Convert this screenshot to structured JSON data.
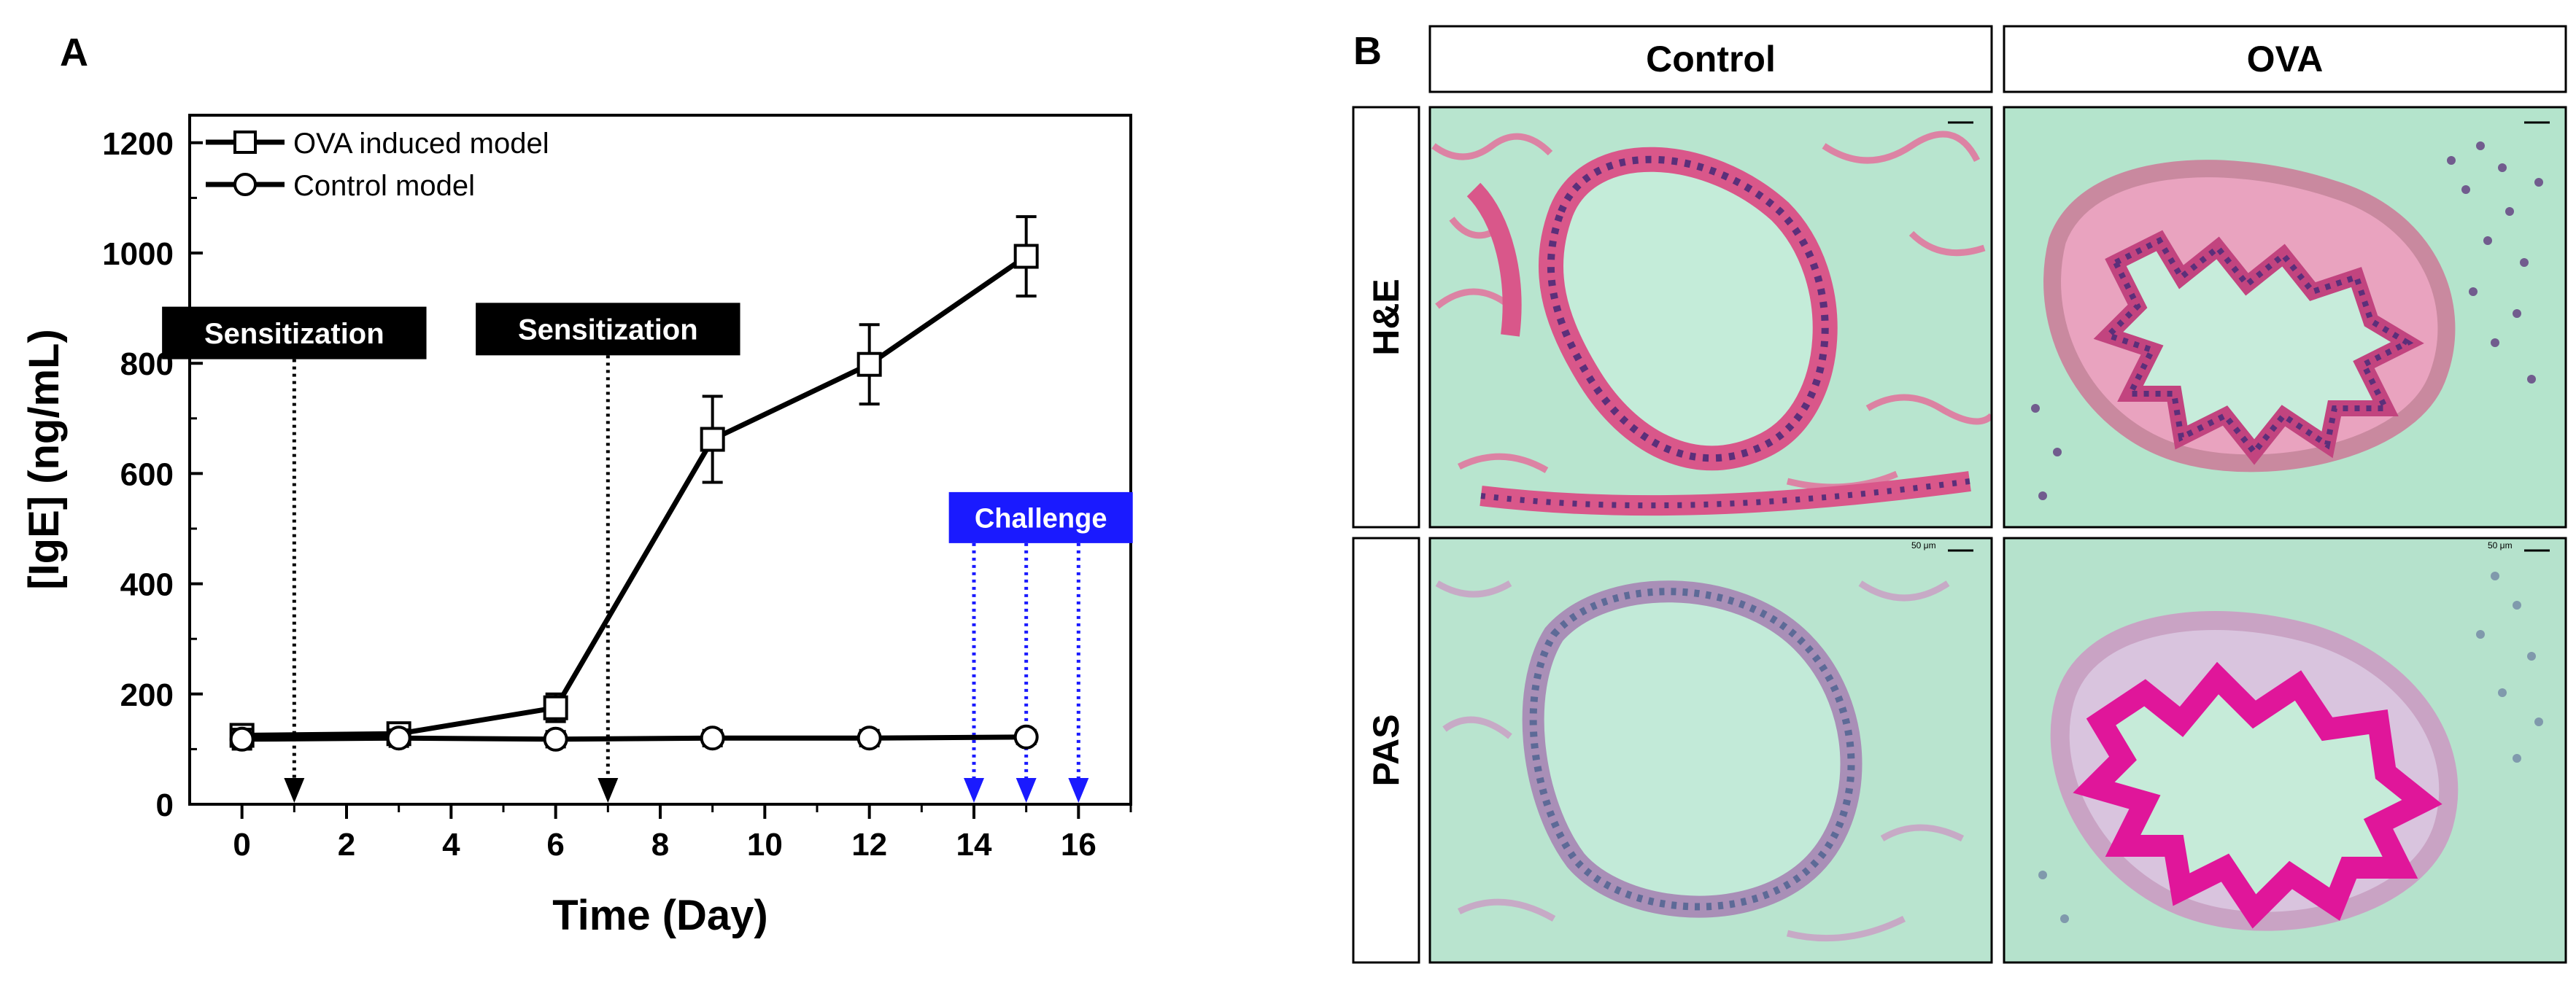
{
  "panel_a_label": "A",
  "panel_b_label": "B",
  "colors": {
    "black": "#000000",
    "blue": "#1a1aff",
    "tissue_bg": "#b6e6cd",
    "he_pink": "#d9578a",
    "he_nuclei": "#5b2f7a",
    "pas_magenta": "#e0169a",
    "pas_nuclei": "#5d6a97",
    "pas_wall": "#c9a3c4"
  },
  "chart_data": {
    "type": "line",
    "title": "",
    "xlabel": "Time (Day)",
    "ylabel": "[IgE] (ng/mL)",
    "xlim": [
      -1,
      17
    ],
    "ylim": [
      0,
      1250
    ],
    "xticks": [
      0,
      2,
      4,
      6,
      8,
      10,
      12,
      14,
      16
    ],
    "yticks": [
      0,
      200,
      400,
      600,
      800,
      1000,
      1200
    ],
    "series": [
      {
        "name": "OVA induced model",
        "marker": "square",
        "x": [
          0,
          3,
          6,
          9,
          12,
          15
        ],
        "y": [
          125,
          128,
          175,
          662,
          798,
          994
        ],
        "err": [
          18,
          15,
          25,
          78,
          72,
          72
        ]
      },
      {
        "name": "Control model",
        "marker": "circle",
        "x": [
          0,
          3,
          6,
          9,
          12,
          15
        ],
        "y": [
          118,
          120,
          118,
          120,
          120,
          122
        ],
        "err": [
          18,
          15,
          14,
          14,
          14,
          12
        ]
      }
    ],
    "annotations": [
      {
        "label": "Sensitization",
        "style": "black",
        "arrow_days": [
          1
        ],
        "label_at_y": 855
      },
      {
        "label": "Sensitization",
        "style": "black",
        "arrow_days": [
          7
        ],
        "label_at_y": 862
      },
      {
        "label": "Challenge",
        "style": "blue",
        "arrow_days": [
          14,
          15,
          16
        ],
        "label_at_y": 520
      }
    ]
  },
  "panel_b": {
    "column_headers": [
      "Control",
      "OVA"
    ],
    "row_headers": [
      "H&E",
      "PAS"
    ],
    "scale_bar_label": "50 μm"
  }
}
